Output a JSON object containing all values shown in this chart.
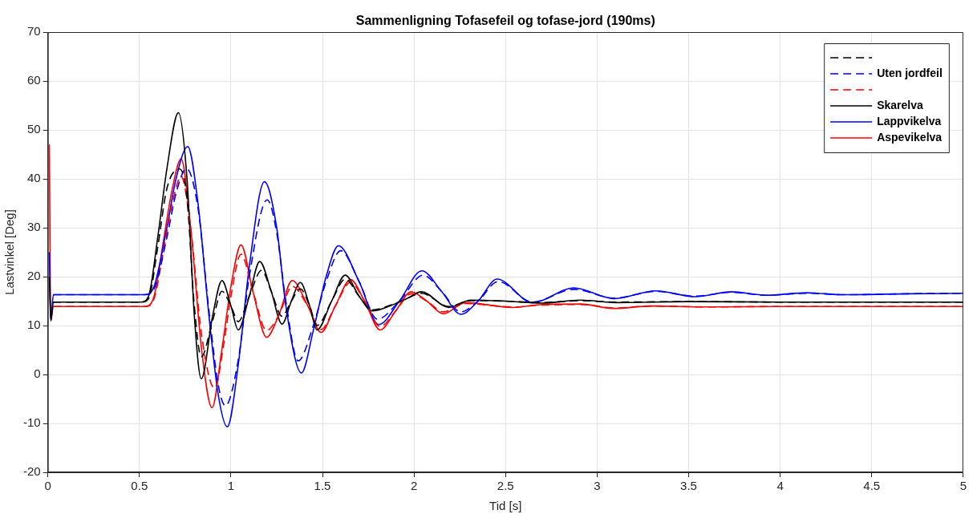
{
  "chart_data": {
    "type": "line",
    "title": "Sammenligning Tofasefeil og tofase-jord (190ms)",
    "xlabel": "Tid [s]",
    "ylabel": "Lastvinkel [Deg]",
    "xlim": [
      0,
      5
    ],
    "xticks": [
      0,
      0.5,
      1,
      1.5,
      2,
      2.5,
      3,
      3.5,
      4,
      4.5,
      5
    ],
    "ylim": [
      -20,
      70
    ],
    "yticks": [
      -20,
      -10,
      0,
      10,
      20,
      30,
      40,
      50,
      60,
      70
    ],
    "grid": true,
    "legend": "top right",
    "marker": "none",
    "series": [
      {
        "color": "#000000",
        "line_style": "dashed",
        "x": [
          0.03,
          0.51,
          0.55,
          0.6,
          0.65,
          0.72,
          0.76,
          0.8,
          0.838,
          0.9,
          0.951,
          1.0,
          1.04,
          1.1,
          1.168,
          1.22,
          1.279,
          1.33,
          1.379,
          1.43,
          1.47,
          1.55,
          1.624,
          1.7,
          1.771,
          1.874,
          1.96,
          2.04,
          2.19,
          2.31,
          2.5,
          2.7,
          2.91,
          3.1,
          3.5,
          4,
          4.5,
          5
        ],
        "values": [
          14.8,
          14.8,
          15.5,
          26,
          38,
          42,
          36,
          14,
          3.6,
          11,
          17,
          14,
          10.8,
          16,
          21.3,
          17,
          11.9,
          15,
          17.5,
          14,
          10,
          15,
          19.5,
          16,
          13.2,
          14.2,
          15.5,
          16.6,
          13.9,
          15.1,
          15,
          14.7,
          15.1,
          14.8,
          14.9,
          14.8,
          14.8,
          14.8
        ]
      },
      {
        "name": "Uten jordfeil",
        "color": "#0000ff",
        "line_style": "dashed",
        "x": [
          0.03,
          0.53,
          0.58,
          0.65,
          0.7,
          0.757,
          0.82,
          0.88,
          0.93,
          0.97,
          1.04,
          1.1,
          1.198,
          1.25,
          1.3,
          1.367,
          1.45,
          1.52,
          1.6,
          1.7,
          1.8,
          1.92,
          2.05,
          2.15,
          2.256,
          2.35,
          2.46,
          2.646,
          2.873,
          3.094,
          3.32,
          3.535,
          3.733,
          3.924,
          4.145,
          4.35,
          4.7,
          5
        ],
        "values": [
          16.3,
          16.3,
          17.5,
          28,
          37,
          42.1,
          34,
          13,
          -2,
          -6.4,
          3,
          20,
          35.7,
          29,
          15,
          2.8,
          10,
          19,
          25.3,
          19,
          11.3,
          15,
          20.3,
          17,
          12.8,
          15,
          19,
          14.8,
          17.4,
          15.6,
          17,
          16,
          16.8,
          16.2,
          16.6,
          16.3,
          16.5,
          16.6
        ]
      },
      {
        "color": "#ff0000",
        "line_style": "dashed",
        "x": [
          0.03,
          0.53,
          0.58,
          0.63,
          0.68,
          0.728,
          0.78,
          0.84,
          0.911,
          0.96,
          1.0,
          1.055,
          1.12,
          1.195,
          1.26,
          1.335,
          1.42,
          1.492,
          1.57,
          1.653,
          1.73,
          1.815,
          1.9,
          1.984,
          2.07,
          2.16,
          2.28,
          2.54,
          2.7,
          2.91,
          3.09,
          3.3,
          3.6,
          4,
          4.5,
          5
        ],
        "values": [
          13.9,
          13.9,
          15.5,
          25,
          35,
          40.5,
          30,
          8,
          -2.8,
          6,
          16,
          24.6,
          17,
          9,
          12,
          18,
          14,
          9.2,
          14,
          18.8,
          15,
          9.8,
          13,
          16.5,
          15,
          12.8,
          14.5,
          13.8,
          14.2,
          14.3,
          13.6,
          14,
          13.8,
          13.9,
          13.9,
          13.9
        ]
      },
      {
        "name": "Skarelva",
        "color": "#000000",
        "line_style": "solid",
        "x": [
          0.008,
          0.016,
          0.03,
          0.51,
          0.55,
          0.6,
          0.65,
          0.713,
          0.76,
          0.8,
          0.838,
          0.9,
          0.951,
          1.0,
          1.04,
          1.1,
          1.157,
          1.22,
          1.279,
          1.33,
          1.379,
          1.43,
          1.47,
          1.55,
          1.624,
          1.7,
          1.771,
          1.874,
          1.96,
          2.04,
          2.19,
          2.31,
          2.5,
          2.7,
          2.91,
          3.1,
          3.5,
          4,
          4.5,
          5
        ],
        "values": [
          20,
          11,
          14.8,
          14.8,
          16,
          28,
          42,
          53.5,
          40,
          12,
          -0.9,
          12,
          19.2,
          14,
          9.1,
          16,
          23.1,
          17,
          10.3,
          15,
          18.8,
          14,
          9.1,
          15,
          20.3,
          16,
          13,
          14.1,
          15.5,
          16.9,
          13.7,
          15.2,
          15,
          14.6,
          15.2,
          14.7,
          14.9,
          14.8,
          14.8,
          14.8
        ]
      },
      {
        "name": "Lappvikelva",
        "color": "#0000ff",
        "line_style": "solid",
        "x": [
          0.008,
          0.016,
          0.03,
          0.53,
          0.58,
          0.65,
          0.7,
          0.764,
          0.82,
          0.88,
          0.93,
          0.98,
          1.04,
          1.1,
          1.183,
          1.25,
          1.3,
          1.385,
          1.45,
          1.52,
          1.587,
          1.7,
          1.808,
          1.92,
          2.043,
          2.15,
          2.256,
          2.35,
          2.454,
          2.646,
          2.873,
          3.094,
          3.32,
          3.535,
          3.733,
          3.924,
          4.145,
          4.35,
          4.7,
          5
        ],
        "values": [
          25,
          11,
          16.3,
          16.3,
          18,
          30,
          40,
          46.6,
          35,
          12,
          -4,
          -10.7,
          2,
          22,
          39.4,
          30,
          14,
          0.3,
          9,
          20,
          26.3,
          19,
          10.2,
          15,
          21.2,
          17,
          12.3,
          15,
          19.5,
          14.7,
          17.7,
          15.5,
          17.1,
          15.9,
          16.9,
          16.2,
          16.7,
          16.3,
          16.5,
          16.6
        ]
      },
      {
        "name": "Aspevikelva",
        "color": "#ff0000",
        "line_style": "solid",
        "x": [
          0.008,
          0.016,
          0.03,
          0.53,
          0.58,
          0.63,
          0.68,
          0.728,
          0.78,
          0.84,
          0.897,
          0.95,
          1.0,
          1.055,
          1.12,
          1.195,
          1.26,
          1.335,
          1.42,
          1.492,
          1.57,
          1.653,
          1.73,
          1.815,
          1.9,
          1.984,
          2.07,
          2.16,
          2.28,
          2.54,
          2.7,
          2.91,
          3.09,
          3.3,
          3.6,
          4,
          4.5,
          5
        ],
        "values": [
          47,
          11,
          13.9,
          13.9,
          16,
          27,
          38,
          44.1,
          30,
          5,
          -6.8,
          5,
          18,
          26.5,
          17,
          7.6,
          12,
          19.2,
          14,
          8.6,
          14,
          19.4,
          15,
          9.1,
          13,
          16.9,
          15,
          12.4,
          14.7,
          13.7,
          14.3,
          14.4,
          13.5,
          14,
          13.8,
          13.9,
          13.9,
          13.9
        ]
      }
    ]
  }
}
